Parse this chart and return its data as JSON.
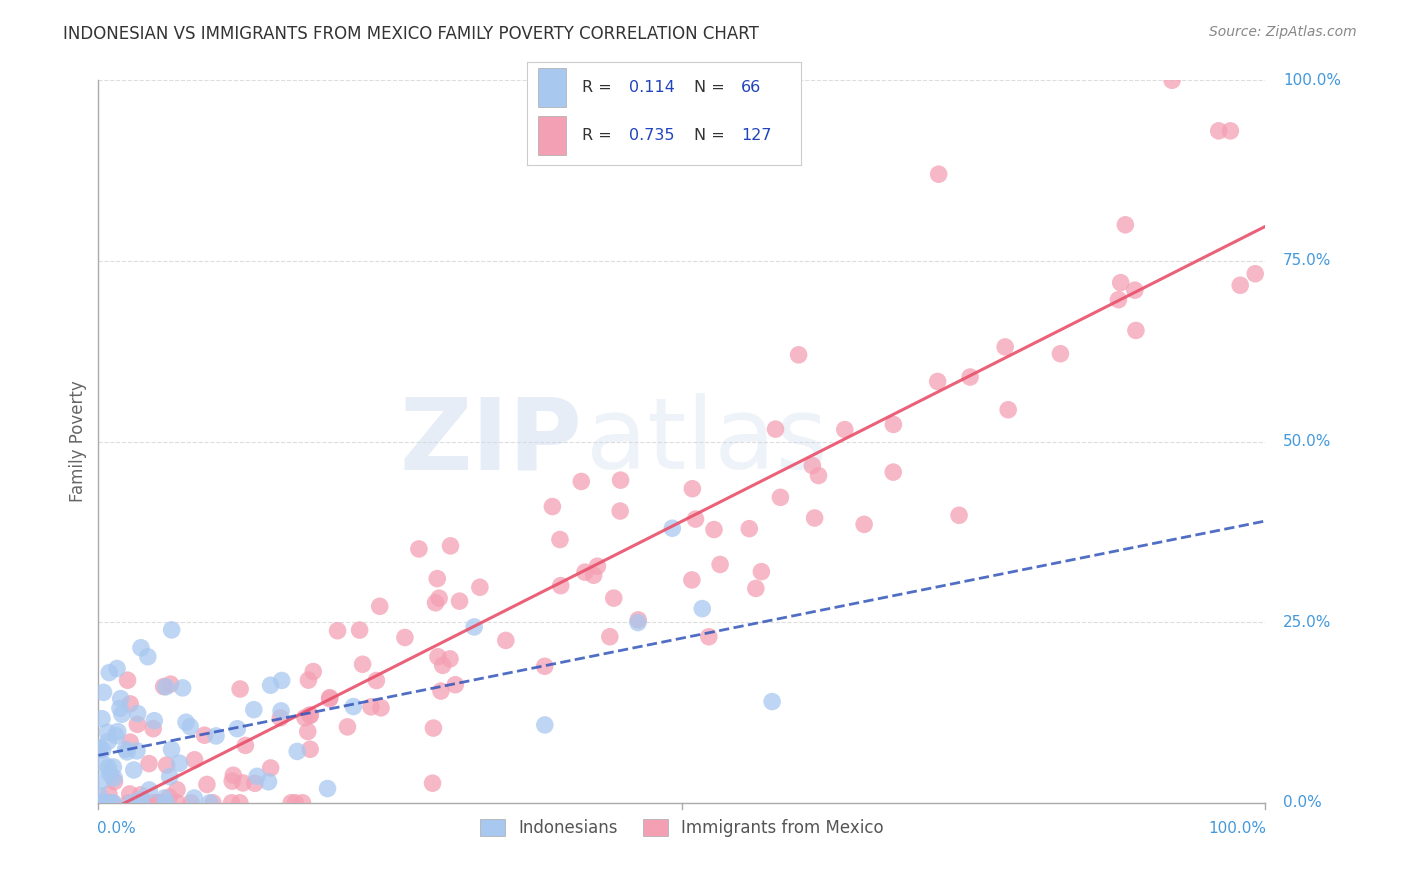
{
  "title": "INDONESIAN VS IMMIGRANTS FROM MEXICO FAMILY POVERTY CORRELATION CHART",
  "source": "Source: ZipAtlas.com",
  "ylabel": "Family Poverty",
  "watermark_zip": "ZIP",
  "watermark_atlas": "atlas",
  "indonesian_R": 0.114,
  "indonesian_N": 66,
  "mexico_R": 0.735,
  "mexico_N": 127,
  "indonesian_color": "#a8c8f0",
  "mexico_color": "#f4a0b4",
  "indonesian_line_color": "#3355bb",
  "mexico_line_color": "#e8506a",
  "background_color": "#ffffff",
  "grid_color": "#cccccc",
  "title_color": "#333333",
  "legend_value_color": "#2244bb",
  "axis_tick_color": "#4499dd",
  "xlim": [
    0,
    1
  ],
  "ylim": [
    0,
    1
  ],
  "ytick_positions": [
    0.0,
    0.25,
    0.5,
    0.75,
    1.0
  ],
  "ytick_labels": [
    "0.0%",
    "25.0%",
    "50.0%",
    "75.0%",
    "100.0%"
  ]
}
